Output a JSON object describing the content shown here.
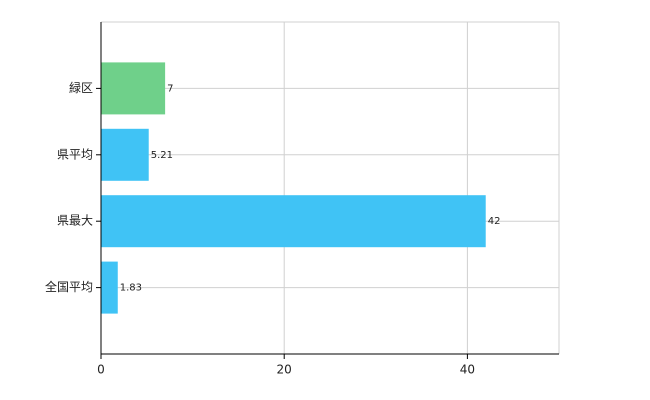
{
  "chart_data": {
    "type": "bar",
    "orientation": "horizontal",
    "categories": [
      "緑区",
      "県平均",
      "県最大",
      "全国平均"
    ],
    "values": [
      7,
      5.21,
      42,
      1.83
    ],
    "colors": [
      "#6fd08a",
      "#40c3f5",
      "#40c3f5",
      "#40c3f5"
    ],
    "xlim": [
      0,
      50
    ],
    "xticks": [
      0,
      20,
      40
    ],
    "grid": true
  }
}
